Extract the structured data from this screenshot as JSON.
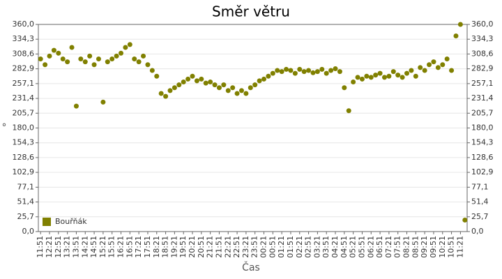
{
  "chart_data": {
    "type": "scatter",
    "title": "Směr větru",
    "x_label": "Čas",
    "y_label": "°",
    "categories": [
      "11:51",
      null,
      "12:21",
      null,
      "12:51",
      null,
      "13:21",
      null,
      "13:51",
      null,
      "14:21",
      null,
      "14:51",
      null,
      "15:21",
      null,
      "15:51",
      null,
      "16:21",
      null,
      "16:51",
      null,
      "17:21",
      null,
      "17:51",
      null,
      "18:21",
      null,
      "18:51",
      null,
      "19:21",
      null,
      "19:51",
      null,
      "20:21",
      null,
      "20:51",
      null,
      "21:21",
      null,
      "21:51",
      null,
      "22:21",
      null,
      "22:51",
      null,
      "23:21",
      null,
      "23:51",
      null,
      "00:21",
      null,
      "00:51",
      null,
      "01:21",
      null,
      "01:51",
      null,
      "02:21",
      null,
      "02:51",
      null,
      "03:21",
      null,
      "03:51",
      null,
      "04:21",
      null,
      "04:51",
      null,
      "05:21",
      null,
      "05:51",
      null,
      "06:21",
      null,
      "06:51",
      null,
      "07:21",
      null,
      "07:51",
      null,
      "08:21",
      null,
      "08:51",
      null,
      "09:21",
      null,
      "09:51",
      null,
      "10:21",
      null,
      "10:51",
      null,
      "11:21",
      null
    ],
    "series": [
      {
        "name": "Bouřňák",
        "color": "#808000",
        "values": [
          300,
          290,
          305,
          315,
          310,
          300,
          295,
          320,
          218,
          300,
          295,
          305,
          290,
          300,
          225,
          295,
          300,
          305,
          310,
          320,
          325,
          300,
          295,
          305,
          290,
          280,
          270,
          240,
          235,
          245,
          250,
          255,
          260,
          265,
          270,
          262,
          265,
          258,
          260,
          255,
          250,
          255,
          245,
          250,
          240,
          245,
          240,
          250,
          255,
          262,
          265,
          270,
          275,
          280,
          278,
          282,
          280,
          275,
          282,
          278,
          280,
          276,
          278,
          282,
          275,
          280,
          283,
          278,
          250,
          210,
          260,
          268,
          265,
          270,
          268,
          272,
          275,
          268,
          270,
          278,
          272,
          268,
          275,
          280,
          270,
          285,
          280,
          290,
          295,
          285,
          290,
          300,
          280,
          340,
          360,
          20
        ]
      }
    ],
    "ylim": [
      0,
      360
    ],
    "yticks": [
      {
        "value": 0,
        "label": "0,0"
      },
      {
        "value": 25.7,
        "label": "25,7"
      },
      {
        "value": 51.4,
        "label": "51,4"
      },
      {
        "value": 77.1,
        "label": "77,1"
      },
      {
        "value": 102.9,
        "label": "102,9"
      },
      {
        "value": 128.6,
        "label": "128,6"
      },
      {
        "value": 154.3,
        "label": "154,3"
      },
      {
        "value": 180,
        "label": "180,0"
      },
      {
        "value": 205.7,
        "label": "205,7"
      },
      {
        "value": 231.4,
        "label": "231,4"
      },
      {
        "value": 257.1,
        "label": "257,1"
      },
      {
        "value": 282.9,
        "label": "282,9"
      },
      {
        "value": 308.6,
        "label": "308,6"
      },
      {
        "value": 334.3,
        "label": "334,3"
      },
      {
        "value": 360,
        "label": "360,0"
      }
    ],
    "grid": true,
    "legend": "lower left"
  }
}
